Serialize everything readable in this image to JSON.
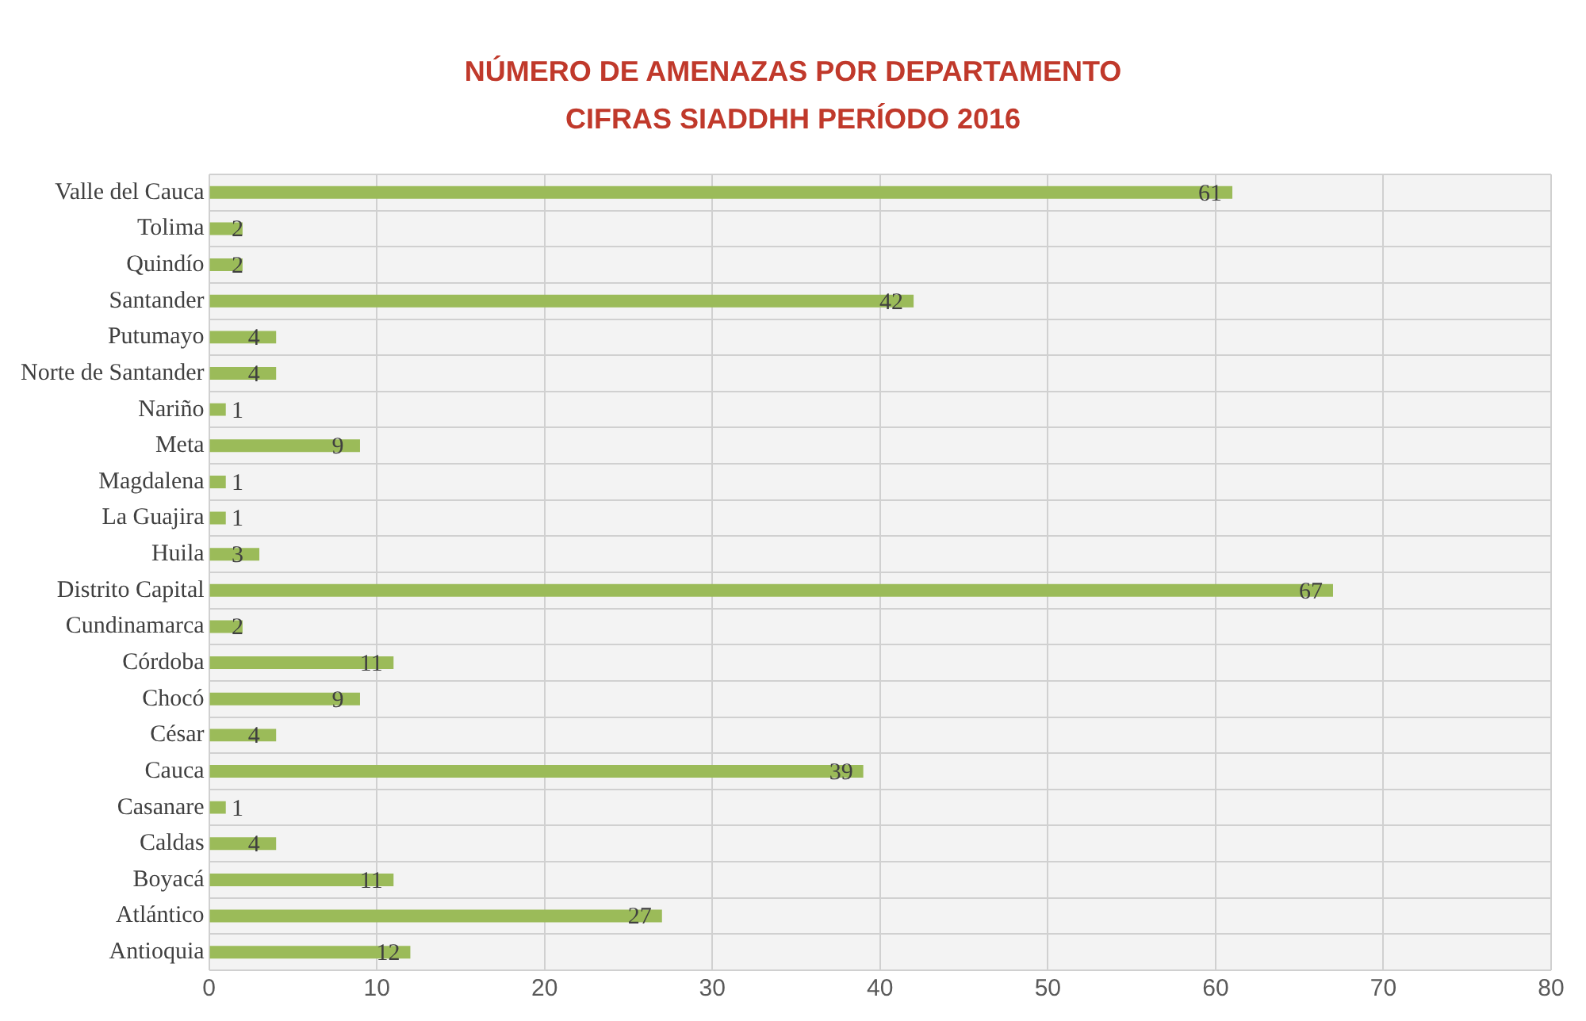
{
  "chart_data": {
    "type": "bar",
    "orientation": "horizontal",
    "title": "NÚMERO DE AMENAZAS POR DEPARTAMENTO\nCIFRAS SIADDHH PERÍODO 2016",
    "categories": [
      "Valle del Cauca",
      "Tolima",
      "Quindío",
      "Santander",
      "Putumayo",
      "Norte de Santander",
      "Nariño",
      "Meta",
      "Magdalena",
      "La Guajira",
      "Huila",
      "Distrito Capital",
      "Cundinamarca",
      "Córdoba",
      "Chocó",
      "César",
      "Cauca",
      "Casanare",
      "Caldas",
      "Boyacá",
      "Atlántico",
      "Antioquia"
    ],
    "values": [
      61,
      2,
      2,
      42,
      4,
      4,
      1,
      9,
      1,
      1,
      3,
      67,
      2,
      11,
      9,
      4,
      39,
      1,
      4,
      11,
      27,
      12
    ],
    "color": "#9bbb59",
    "xlim": [
      0,
      80
    ],
    "xticks": [
      0,
      10,
      20,
      30,
      40,
      50,
      60,
      70,
      80
    ],
    "grid": true,
    "data_labels": true,
    "legend": false
  }
}
